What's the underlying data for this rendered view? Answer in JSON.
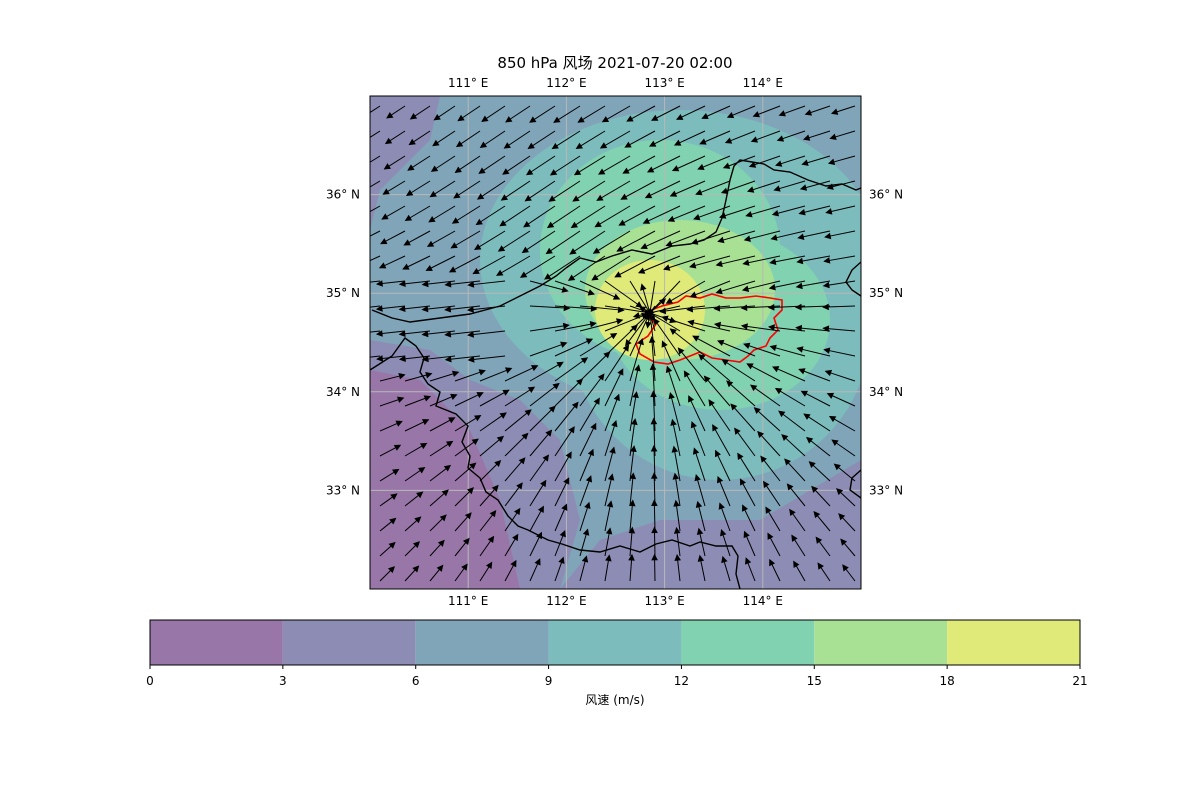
{
  "title": "850 hPa 风场 2021-07-20 02:00",
  "map": {
    "lon_range": [
      110.0,
      115.0
    ],
    "lat_range": [
      32.0,
      37.0
    ],
    "gridlines": true,
    "lon_ticks": [
      111,
      112,
      113,
      114
    ],
    "lon_tick_labels": [
      "111° E",
      "112° E",
      "113° E",
      "114° E"
    ],
    "lat_ticks": [
      33,
      34,
      35,
      36
    ],
    "lat_tick_labels": [
      "33° N",
      "34° N",
      "35° N",
      "36° N"
    ],
    "fill_type": "filled wind-speed contours with wind vectors",
    "wind_center": {
      "lon": 112.85,
      "lat": 34.8
    },
    "max_speed_region": {
      "lon": 112.7,
      "lat": 34.95
    },
    "boundary_color_main": "#000000",
    "highlight_region_color": "#ff0000",
    "arrow_color": "#000000"
  },
  "colorbar": {
    "label": "风速 (m/s)",
    "levels": [
      0,
      3,
      6,
      9,
      12,
      15,
      18,
      21
    ],
    "tick_labels": [
      "0",
      "3",
      "6",
      "9",
      "12",
      "15",
      "18",
      "21"
    ],
    "colors": [
      "#9876a8",
      "#8c8cb4",
      "#80a4b8",
      "#7cbcbc",
      "#80d2b0",
      "#a8e094",
      "#e0ea78"
    ]
  },
  "chart_data": {
    "type": "heatmap",
    "title": "850 hPa 风场 2021-07-20 02:00",
    "xlabel": "",
    "ylabel": "",
    "xlim": [
      110.0,
      115.0
    ],
    "ylim": [
      32.0,
      37.0
    ],
    "colorbar_label": "风速 (m/s)",
    "levels": [
      0,
      3,
      6,
      9,
      12,
      15,
      18,
      21
    ],
    "approx_speed_regions": [
      {
        "range": "18-21",
        "center_lon": 112.7,
        "center_lat": 34.95
      },
      {
        "range": "15-18",
        "center_lon": 112.9,
        "center_lat": 34.9
      },
      {
        "range": "0-3",
        "center_lon": 110.5,
        "center_lat": 32.8
      }
    ]
  }
}
